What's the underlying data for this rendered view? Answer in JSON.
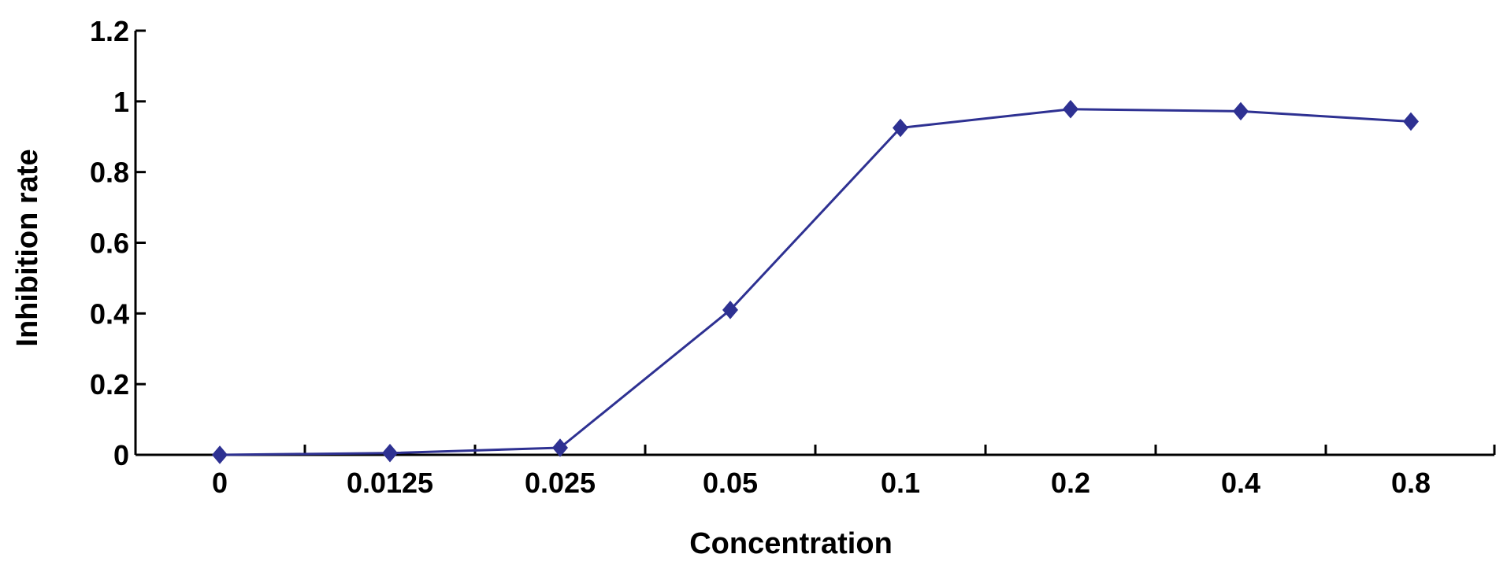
{
  "chart_data": {
    "type": "line",
    "categories": [
      "0",
      "0.0125",
      "0.025",
      "0.05",
      "0.1",
      "0.2",
      "0.4",
      "0.8"
    ],
    "series": [
      {
        "values": [
          0.0,
          0.005,
          0.02,
          0.41,
          0.925,
          0.978,
          0.972,
          0.943
        ]
      }
    ],
    "xlabel": "Concentration",
    "ylabel": "Inhibition rate",
    "ylim": [
      0,
      1.2
    ],
    "yticks": [
      "0",
      "0.2",
      "0.4",
      "0.6",
      "0.8",
      "1",
      "1.2"
    ],
    "grid": false,
    "marker": "diamond",
    "series_color": "#2e3192"
  }
}
